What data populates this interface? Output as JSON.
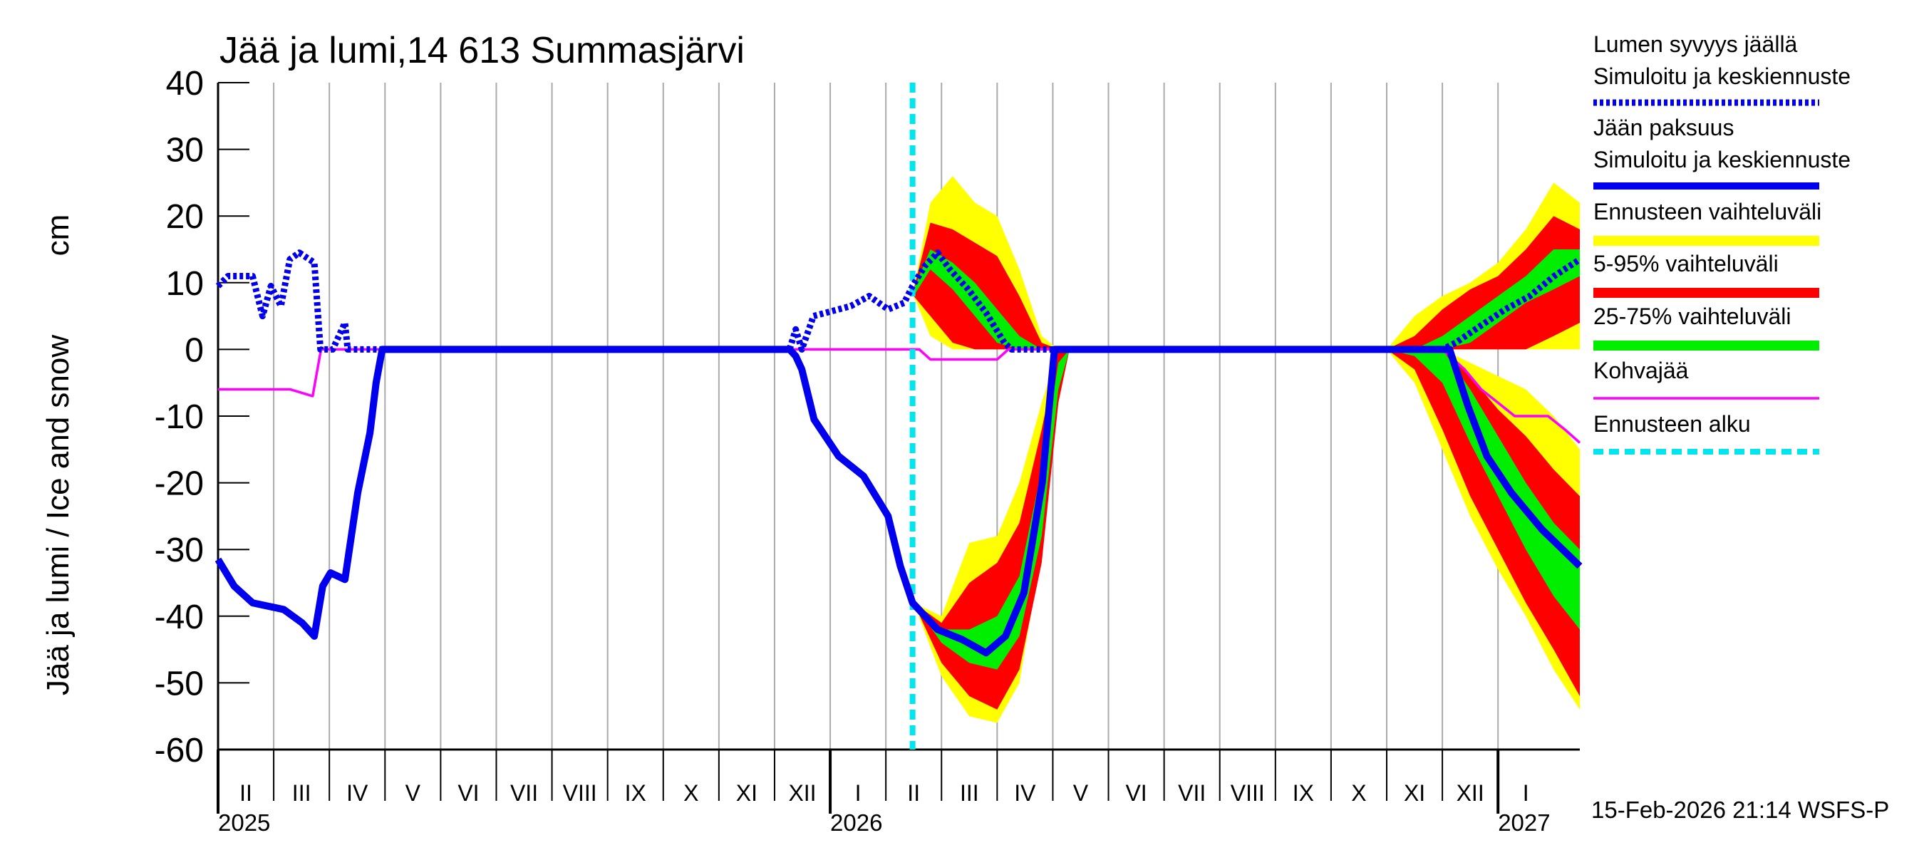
{
  "chart_data": {
    "type": "line",
    "title": "Jää ja lumi,14 613 Summasjärvi",
    "ylabel": "Jää ja lumi / Ice and snow",
    "yunit": "cm",
    "ylim": [
      -60,
      40
    ],
    "yticks": [
      -60,
      -50,
      -40,
      -30,
      -20,
      -10,
      0,
      10,
      20,
      30,
      40
    ],
    "xlim": [
      0,
      24.47
    ],
    "xticks": [
      {
        "value": 0.5,
        "label": "II"
      },
      {
        "value": 1.5,
        "label": "III"
      },
      {
        "value": 2.5,
        "label": "IV"
      },
      {
        "value": 3.5,
        "label": "V"
      },
      {
        "value": 4.5,
        "label": "VI"
      },
      {
        "value": 5.5,
        "label": "VII"
      },
      {
        "value": 6.5,
        "label": "VIII"
      },
      {
        "value": 7.5,
        "label": "IX"
      },
      {
        "value": 8.5,
        "label": "X"
      },
      {
        "value": 9.5,
        "label": "XI"
      },
      {
        "value": 10.5,
        "label": "XII"
      },
      {
        "value": 11.5,
        "label": "I"
      },
      {
        "value": 12.5,
        "label": "II"
      },
      {
        "value": 13.5,
        "label": "III"
      },
      {
        "value": 14.5,
        "label": "IV"
      },
      {
        "value": 15.5,
        "label": "V"
      },
      {
        "value": 16.5,
        "label": "VI"
      },
      {
        "value": 17.5,
        "label": "VII"
      },
      {
        "value": 18.5,
        "label": "VIII"
      },
      {
        "value": 19.5,
        "label": "IX"
      },
      {
        "value": 20.5,
        "label": "X"
      },
      {
        "value": 21.5,
        "label": "XI"
      },
      {
        "value": 22.5,
        "label": "XII"
      },
      {
        "value": 23.5,
        "label": "I"
      }
    ],
    "year_labels": [
      {
        "value": 0,
        "label": "2025"
      },
      {
        "value": 11,
        "label": "2026"
      },
      {
        "value": 23,
        "label": "2027"
      }
    ],
    "series": [
      {
        "name": "Lumen syvyys jäällä",
        "subname": "Simuloitu ja keskiennuste",
        "color": "#0000ee",
        "style": "dotted",
        "x": [
          0,
          0.18,
          0.62,
          0.8,
          0.95,
          1.13,
          1.29,
          1.46,
          1.73,
          1.84,
          2.06,
          2.28,
          2.33,
          10.27,
          10.38,
          10.49,
          10.7,
          11.37,
          11.7,
          12.04,
          12.33,
          12.48,
          12.7,
          12.93,
          13.15,
          13.48,
          13.8,
          14.13,
          14.26,
          22.0,
          22.24,
          22.68,
          23.13,
          23.57,
          24.01,
          24.47
        ],
        "values": [
          9.5,
          11,
          11,
          5,
          9.5,
          6.5,
          13.5,
          14.5,
          13,
          0,
          0,
          4,
          0,
          0,
          3,
          0,
          5,
          6.5,
          8,
          6,
          7,
          9.5,
          12.5,
          14.5,
          12,
          9,
          5.5,
          1,
          0,
          0,
          1,
          3.5,
          6,
          8,
          11,
          13.5
        ]
      },
      {
        "name": "Jään paksuus",
        "subname": "Simuloitu ja keskiennuste",
        "color": "#0000ee",
        "style": "solid",
        "x": [
          0,
          0.29,
          0.62,
          1.18,
          1.51,
          1.73,
          1.88,
          2.02,
          2.28,
          2.51,
          2.73,
          2.84,
          2.95,
          10.27,
          10.38,
          10.49,
          10.71,
          11.15,
          11.6,
          12.04,
          12.26,
          12.48,
          12.93,
          13.37,
          13.8,
          14.15,
          14.48,
          14.81,
          15.03,
          22.13,
          22.46,
          22.8,
          23.24,
          23.79,
          24.47
        ],
        "values": [
          -31.5,
          -35.5,
          -38,
          -39,
          -41,
          -43,
          -35.5,
          -33.5,
          -34.5,
          -21.5,
          -12.5,
          -5,
          0,
          0,
          -1,
          -3,
          -10.5,
          -16,
          -19,
          -25,
          -32.5,
          -38,
          -42,
          -43.5,
          -45.5,
          -43,
          -36.5,
          -20,
          0,
          0,
          -8.5,
          -16,
          -21.5,
          -27,
          -32.5
        ]
      },
      {
        "name": "Kohvajää",
        "color": "#ff00ff",
        "style": "thin",
        "x": [
          0,
          1.3,
          1.7,
          1.85,
          2.1,
          12.5,
          12.6,
          12.8,
          14.0,
          14.2,
          22.0,
          22.4,
          22.7,
          23.0,
          23.3,
          23.6,
          23.9,
          24.2,
          24.47
        ],
        "values": [
          -6,
          -6,
          -7,
          0,
          0,
          0,
          0,
          -1.5,
          -1.5,
          0,
          0,
          -3,
          -6,
          -8,
          -10,
          -10,
          -10,
          -12,
          -14
        ]
      }
    ],
    "bands": [
      {
        "name": "Ennusteen vaihteluväli",
        "color": "#ffff00",
        "areas": [
          {
            "x": [
              12.5,
              12.8,
              13.2,
              13.6,
              14.0,
              14.4,
              14.8,
              15.1
            ],
            "low": [
              8,
              2,
              0,
              0,
              0,
              0,
              0,
              0
            ],
            "high": [
              9,
              22,
              26,
              22,
              20,
              12,
              2,
              0
            ]
          },
          {
            "x": [
              21.0,
              21.5,
              22.0,
              22.5,
              23.0,
              23.5,
              24.0,
              24.47
            ],
            "low": [
              0,
              0,
              0,
              0,
              0,
              0,
              0,
              0
            ],
            "high": [
              0,
              5,
              8,
              10,
              13,
              18,
              25,
              22
            ]
          },
          {
            "x": [
              12.5,
              13.0,
              13.5,
              14.0,
              14.4,
              14.8,
              15.1,
              15.3
            ],
            "low": [
              -38,
              -49,
              -55,
              -56,
              -50,
              -30,
              -5,
              0
            ],
            "high": [
              -38,
              -40,
              -29,
              -28,
              -20,
              -8,
              0,
              0
            ]
          },
          {
            "x": [
              21.0,
              21.5,
              22.0,
              22.5,
              23.0,
              23.5,
              24.0,
              24.47
            ],
            "low": [
              0,
              -5,
              -15,
              -25,
              -33,
              -40,
              -48,
              -54
            ],
            "high": [
              0,
              0,
              0,
              -2,
              -4,
              -6,
              -10,
              -15
            ]
          }
        ]
      },
      {
        "name": "5-95% vaihteluväli",
        "color": "#ff0000",
        "areas": [
          {
            "x": [
              12.5,
              12.8,
              13.2,
              13.6,
              14.0,
              14.4,
              14.8,
              15.1
            ],
            "low": [
              8,
              5,
              1,
              0,
              0,
              0,
              0,
              0
            ],
            "high": [
              9,
              19,
              18,
              16,
              14,
              8,
              1,
              0
            ]
          },
          {
            "x": [
              21.0,
              21.5,
              22.0,
              22.5,
              23.0,
              23.5,
              24.0,
              24.47
            ],
            "low": [
              0,
              0,
              0,
              0,
              0,
              0,
              2,
              4
            ],
            "high": [
              0,
              2,
              6,
              9,
              11,
              15,
              20,
              18
            ]
          },
          {
            "x": [
              12.5,
              13.0,
              13.5,
              14.0,
              14.4,
              14.8,
              15.1,
              15.3
            ],
            "low": [
              -38,
              -47,
              -52,
              -54,
              -48,
              -32,
              -8,
              0
            ],
            "high": [
              -38,
              -41,
              -35,
              -32,
              -26,
              -12,
              0,
              0
            ]
          },
          {
            "x": [
              21.0,
              21.5,
              22.0,
              22.5,
              23.0,
              23.5,
              24.0,
              24.47
            ],
            "low": [
              0,
              -3,
              -12,
              -22,
              -30,
              -38,
              -45,
              -52
            ],
            "high": [
              0,
              0,
              0,
              -4,
              -9,
              -13,
              -18,
              -22
            ]
          }
        ]
      },
      {
        "name": "25-75% vaihteluväli",
        "color": "#00ee00",
        "areas": [
          {
            "x": [
              12.5,
              12.8,
              13.2,
              13.6,
              14.0,
              14.4,
              14.8,
              15.1
            ],
            "low": [
              8,
              12,
              9,
              5,
              1,
              0,
              0,
              0
            ],
            "high": [
              9,
              15,
              13,
              10,
              6,
              2,
              0,
              0
            ]
          },
          {
            "x": [
              21.0,
              21.5,
              22.0,
              22.5,
              23.0,
              23.5,
              24.0,
              24.47
            ],
            "low": [
              0,
              0,
              0,
              1,
              4,
              7,
              9,
              11
            ],
            "high": [
              0,
              0,
              2,
              5,
              8,
              11,
              15,
              15
            ]
          },
          {
            "x": [
              12.5,
              13.0,
              13.5,
              14.0,
              14.4,
              14.8,
              15.1,
              15.3
            ],
            "low": [
              -38,
              -44,
              -47,
              -48,
              -43,
              -28,
              -6,
              0
            ],
            "high": [
              -38,
              -42,
              -42,
              -40,
              -34,
              -18,
              -2,
              0
            ]
          },
          {
            "x": [
              21.0,
              21.5,
              22.0,
              22.5,
              23.0,
              23.5,
              24.0,
              24.47
            ],
            "low": [
              0,
              -1,
              -5,
              -14,
              -22,
              -30,
              -37,
              -42
            ],
            "high": [
              0,
              0,
              0,
              -6,
              -13,
              -20,
              -26,
              -30
            ]
          }
        ]
      }
    ],
    "forecast_start": {
      "name": "Ennusteen alku",
      "color": "#00e5ee",
      "x": 12.48
    },
    "footer": "15-Feb-2026 21:14 WSFS-P"
  }
}
